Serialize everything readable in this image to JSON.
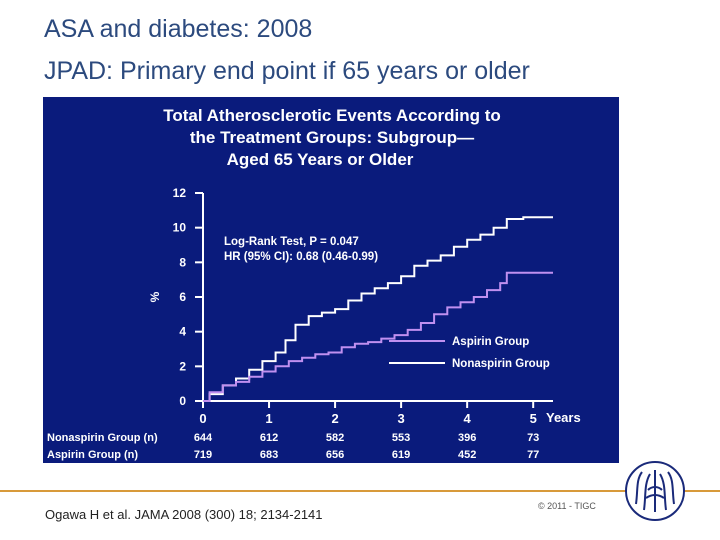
{
  "slide": {
    "title_line1": "ASA and diabetes: 2008",
    "title_line2": "JPAD: Primary end point if 65 years or older",
    "citation": "Ogawa H et al. JAMA 2008 (300) 18; 2134-2141",
    "copyright": "© 2011 - TIGC"
  },
  "colors": {
    "panel_bg": "#0a1b7c",
    "nonaspirin": "#ffffff",
    "aspirin": "#c090f0",
    "chart_title": "#ffffff",
    "accent_rule": "#d89a3a"
  },
  "chart_data": {
    "type": "line",
    "title_lines": [
      "Total Atherosclerotic Events According to",
      "the Treatment Groups: Subgroup—",
      "Aged 65 Years or Older"
    ],
    "ylabel": "%",
    "xlabel": "Years",
    "xlim": [
      0,
      5.3
    ],
    "ylim": [
      0,
      12
    ],
    "xticks": [
      "0",
      "1",
      "2",
      "3",
      "4",
      "5"
    ],
    "yticks": [
      "0",
      "2",
      "4",
      "6",
      "8",
      "10",
      "12"
    ],
    "annotation_line1": "Log-Rank Test, P = 0.047",
    "annotation_line2": "HR (95% CI): 0.68 (0.46-0.99)",
    "series": [
      {
        "name": "Nonaspirin Group",
        "points": [
          [
            0,
            0
          ],
          [
            0.1,
            0.4
          ],
          [
            0.3,
            0.9
          ],
          [
            0.5,
            1.3
          ],
          [
            0.7,
            1.8
          ],
          [
            0.9,
            2.3
          ],
          [
            1.1,
            2.8
          ],
          [
            1.25,
            3.5
          ],
          [
            1.4,
            4.4
          ],
          [
            1.6,
            4.9
          ],
          [
            1.8,
            5.1
          ],
          [
            2.0,
            5.3
          ],
          [
            2.2,
            5.8
          ],
          [
            2.4,
            6.2
          ],
          [
            2.6,
            6.5
          ],
          [
            2.8,
            6.8
          ],
          [
            3.0,
            7.2
          ],
          [
            3.2,
            7.8
          ],
          [
            3.4,
            8.1
          ],
          [
            3.6,
            8.4
          ],
          [
            3.8,
            8.9
          ],
          [
            4.0,
            9.3
          ],
          [
            4.2,
            9.6
          ],
          [
            4.4,
            10.0
          ],
          [
            4.6,
            10.5
          ],
          [
            4.85,
            10.6
          ],
          [
            5.3,
            10.6
          ]
        ]
      },
      {
        "name": "Aspirin Group",
        "points": [
          [
            0,
            0
          ],
          [
            0.1,
            0.5
          ],
          [
            0.3,
            0.9
          ],
          [
            0.5,
            1.1
          ],
          [
            0.7,
            1.4
          ],
          [
            0.9,
            1.7
          ],
          [
            1.1,
            2.0
          ],
          [
            1.3,
            2.3
          ],
          [
            1.5,
            2.5
          ],
          [
            1.7,
            2.7
          ],
          [
            1.9,
            2.8
          ],
          [
            2.1,
            3.1
          ],
          [
            2.3,
            3.3
          ],
          [
            2.5,
            3.4
          ],
          [
            2.7,
            3.6
          ],
          [
            2.9,
            3.8
          ],
          [
            3.1,
            4.1
          ],
          [
            3.3,
            4.5
          ],
          [
            3.5,
            5.0
          ],
          [
            3.7,
            5.4
          ],
          [
            3.9,
            5.7
          ],
          [
            4.1,
            6.0
          ],
          [
            4.3,
            6.4
          ],
          [
            4.5,
            6.8
          ],
          [
            4.6,
            7.4
          ],
          [
            5.3,
            7.4
          ]
        ]
      }
    ],
    "risk_table": {
      "rows": [
        {
          "label": "Nonaspirin Group (n)",
          "values": [
            "644",
            "612",
            "582",
            "553",
            "396",
            "73"
          ]
        },
        {
          "label": "Aspirin Group (n)",
          "values": [
            "719",
            "683",
            "656",
            "619",
            "452",
            "77"
          ]
        }
      ]
    }
  }
}
